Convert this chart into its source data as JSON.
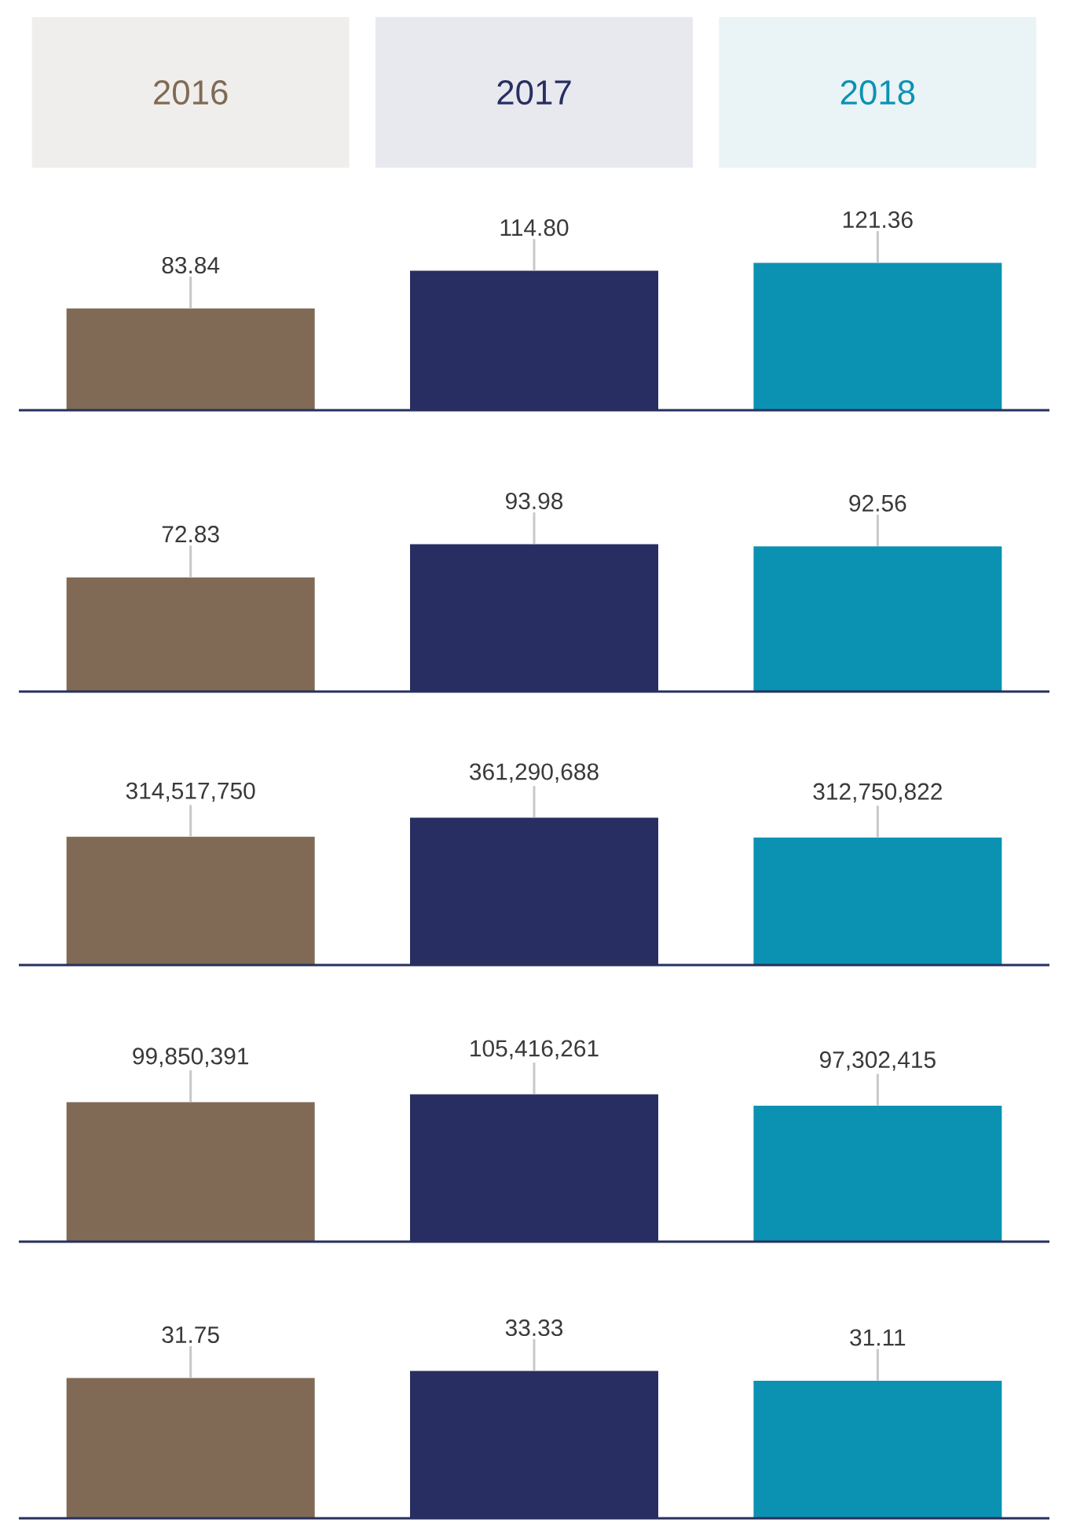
{
  "chart_data": [
    {
      "type": "bar",
      "categories": [
        "2016",
        "2017",
        "2018"
      ],
      "values": [
        83.84,
        114.8,
        121.36
      ],
      "colors": [
        "#806a55",
        "#282e61",
        "#0b92b3"
      ],
      "value_labels": [
        "83.84",
        "114.80",
        "121.36"
      ],
      "tick_labels": "x"
    },
    {
      "type": "bar",
      "categories": [
        null,
        null,
        null
      ],
      "values": [
        72.83,
        93.98,
        92.56
      ],
      "colors": [
        "#806a55",
        "#282e61",
        "#0b92b3"
      ],
      "value_labels": [
        "72.83",
        "93.98",
        "92.56"
      ]
    },
    {
      "type": "bar",
      "categories": [
        null,
        null,
        null
      ],
      "values": [
        314517750,
        361290688,
        312750822
      ],
      "colors": [
        "#806a55",
        "#282e61",
        "#0b92b3"
      ],
      "value_labels": [
        "314,517,750",
        "361,290,688",
        "312,750,822"
      ]
    },
    {
      "type": "bar",
      "categories": [
        null,
        null,
        null
      ],
      "values": [
        99850391,
        105416261,
        97302415
      ],
      "colors": [
        "#806a55",
        "#282e61",
        "#0b92b3"
      ],
      "value_labels": [
        "99,850,391",
        "105,416,261",
        "97,302,415"
      ]
    },
    {
      "type": "bar",
      "categories": [
        null,
        null,
        null
      ],
      "values": [
        31.75,
        33.33,
        31.11
      ],
      "colors": [
        "#806a55",
        "#282e61",
        "#0b92b3"
      ],
      "value_labels": [
        "31.75",
        "33.33",
        "31.11"
      ]
    }
  ]
}
